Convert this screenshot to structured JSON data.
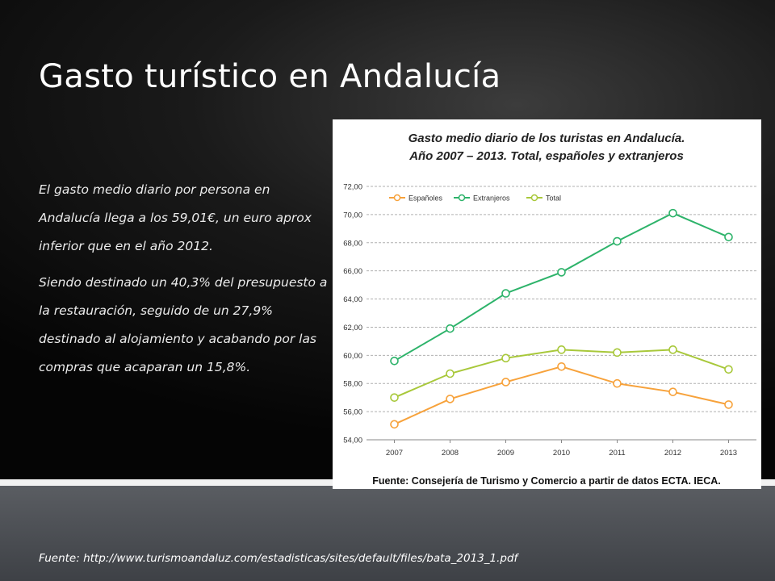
{
  "slide": {
    "title": "Gasto turístico en Andalucía",
    "paragraph_1": "El gasto medio diario por persona en Andalucía llega a los 59,01€, un euro aprox inferior que en el año 2012.",
    "paragraph_2": "Siendo destinado un 40,3% del presupuesto a la restauración, seguido de un 27,9% destinado al alojamiento y acabando por las compras que acaparan un 15,8%.",
    "source_url_line": "Fuente: http://www.turismoandaluz.com/estadisticas/sites/default/files/bata_2013_1.pdf"
  },
  "chart_data": {
    "type": "line",
    "title": "Gasto medio diario de los turistas en Andalucía.",
    "subtitle": "Año 2007 – 2013. Total, españoles y extranjeros",
    "source": "Fuente: Consejería de Turismo y Comercio a partir de datos ECTA. IECA.",
    "categories": [
      "2007",
      "2008",
      "2009",
      "2010",
      "2011",
      "2012",
      "2013"
    ],
    "ylim": [
      54,
      72
    ],
    "yticks": [
      "54,00",
      "56,00",
      "58,00",
      "60,00",
      "62,00",
      "64,00",
      "66,00",
      "68,00",
      "70,00",
      "72,00"
    ],
    "grid": true,
    "legend_position": "top-left",
    "series": [
      {
        "name": "Españoles",
        "color": "#f7a23b",
        "values": [
          55.1,
          56.9,
          58.1,
          59.2,
          58.0,
          57.4,
          56.5
        ]
      },
      {
        "name": "Extranjeros",
        "color": "#2db36a",
        "values": [
          59.6,
          61.9,
          64.4,
          65.9,
          68.1,
          70.1,
          68.4
        ]
      },
      {
        "name": "Total",
        "color": "#a8c83a",
        "values": [
          57.0,
          58.7,
          59.8,
          60.4,
          60.2,
          60.4,
          59.0
        ]
      }
    ]
  }
}
